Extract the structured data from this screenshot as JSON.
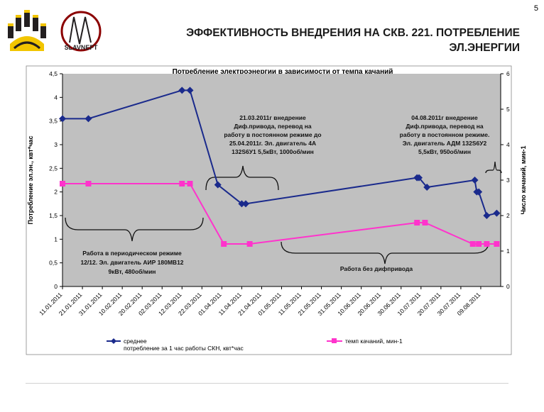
{
  "page_number": "5",
  "slide_title_line1": "ЭФФЕКТИВНОСТЬ ВНЕДРЕНИЯ НА СКВ. 221. ПОТРЕБЛЕНИЕ",
  "slide_title_line2": "ЭЛ.ЭНЕРГИИ",
  "logo": {
    "text": "SLAVNEFT",
    "colors": {
      "yellow": "#f2c500",
      "dark": "#231f20"
    }
  },
  "colors": {
    "plot_bg": "#c0c0c0",
    "series1": "#1a2a8c",
    "series2": "#ff33cc",
    "grid": "#000000"
  },
  "chart_data": {
    "type": "line",
    "title": "Потребление электроэнергии в зависимости от темпа качаний",
    "ylabel": "Потребление эл.эн., квт*час",
    "y2label": "Число качаний, мин-1",
    "ylim": [
      0,
      4.5
    ],
    "y2lim": [
      0,
      6
    ],
    "yticks": [
      "0",
      "0,5",
      "1",
      "1,5",
      "2",
      "2,5",
      "3",
      "3,5",
      "4",
      "4,5"
    ],
    "y2ticks": [
      "0",
      "1",
      "2",
      "3",
      "4",
      "5",
      "6"
    ],
    "xlim": [
      "2011-01-11",
      "2011-08-19"
    ],
    "xtick_labels": [
      "11.01.2011",
      "21.01.2011",
      "31.01.2011",
      "10.02.2011",
      "20.02.2011",
      "02.03.2011",
      "12.03.2011",
      "22.03.2011",
      "01.04.2011",
      "11.04.2011",
      "21.04.2011",
      "01.05.2011",
      "11.05.2011",
      "21.05.2011",
      "31.05.2011",
      "10.06.2011",
      "20.06.2011",
      "30.06.2011",
      "10.07.2011",
      "20.07.2011",
      "30.07.2011",
      "09.08.2011"
    ],
    "grid": false,
    "legend_placement": "bottom",
    "series": [
      {
        "name": "среднее",
        "name_line2": "потребление за 1 час работы СКН, квт*час",
        "axis": "left",
        "x": [
          "2011-01-11",
          "2011-01-24",
          "2011-03-12",
          "2011-03-16",
          "2011-03-30",
          "2011-04-11",
          "2011-04-13",
          "2011-07-08",
          "2011-07-09",
          "2011-07-13",
          "2011-08-06",
          "2011-08-07",
          "2011-08-08",
          "2011-08-12",
          "2011-08-17"
        ],
        "values": [
          3.55,
          3.55,
          4.15,
          4.15,
          2.15,
          1.75,
          1.75,
          2.3,
          2.3,
          2.1,
          2.25,
          2.0,
          2.0,
          1.5,
          1.55
        ]
      },
      {
        "name": "темп качаний, мин-1",
        "axis": "right",
        "x": [
          "2011-01-11",
          "2011-01-24",
          "2011-03-12",
          "2011-03-16",
          "2011-04-02",
          "2011-04-15",
          "2011-07-08",
          "2011-07-12",
          "2011-08-05",
          "2011-08-08",
          "2011-08-12",
          "2011-08-17"
        ],
        "values": [
          2.9,
          2.9,
          2.9,
          2.9,
          1.2,
          1.2,
          1.8,
          1.8,
          1.2,
          1.2,
          1.2,
          1.2
        ]
      }
    ],
    "annotations": {
      "note1": [
        "21.03.2011г внедрение",
        "Диф.привода, перевод на",
        "работу в постоянном режиме до",
        "25.04.2011г. Эл. двигатель 4А",
        "132S6У1 5,5кВт, 1000об/мин"
      ],
      "note2": [
        "04.08.2011г внедрение",
        "Диф.привода, перевод на",
        "работу в постоянном режиме.",
        "Эл. двигатель АДМ 132S6У2",
        "5,5кВт, 950об/мин"
      ],
      "note3": [
        "Работа в периодическом режиме",
        "12/12. Эл. двигатель  АИР 180МВ12",
        "9кВт, 480об/мин"
      ],
      "note4": [
        "Работа без дифпривода"
      ]
    }
  }
}
